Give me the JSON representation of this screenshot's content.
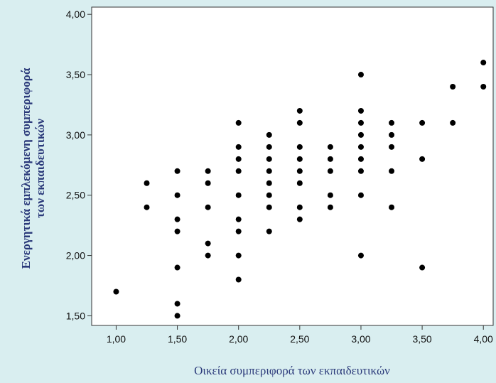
{
  "chart_data": {
    "type": "scatter",
    "title": "",
    "xlabel": "Οικεία συμπεριφορά των εκπαιδευτικών",
    "ylabel_line1": "Ενεργητικά εμπλεκόμενη συμπεριφορά",
    "ylabel_line2": "των εκπαιδευτικών",
    "xlim": [
      0.8,
      4.08
    ],
    "ylim": [
      1.42,
      4.06
    ],
    "x_ticks": [
      1.0,
      1.5,
      2.0,
      2.5,
      3.0,
      3.5,
      4.0
    ],
    "x_tick_labels": [
      "1,00",
      "1,50",
      "2,00",
      "2,50",
      "3,00",
      "3,50",
      "4,00"
    ],
    "y_ticks": [
      1.5,
      2.0,
      2.5,
      3.0,
      3.5,
      4.0
    ],
    "y_tick_labels": [
      "1,50",
      "2,00",
      "2,50",
      "3,00",
      "3,50",
      "4,00"
    ],
    "grid": false,
    "plot_background": "#ffffff",
    "frame_background": "#d9eef0",
    "point_color": "#000000",
    "points": [
      [
        1.0,
        1.7
      ],
      [
        1.25,
        2.6
      ],
      [
        1.25,
        2.4
      ],
      [
        1.5,
        2.7
      ],
      [
        1.5,
        2.5
      ],
      [
        1.5,
        2.3
      ],
      [
        1.5,
        2.2
      ],
      [
        1.5,
        1.9
      ],
      [
        1.5,
        1.6
      ],
      [
        1.5,
        1.5
      ],
      [
        1.75,
        2.7
      ],
      [
        1.75,
        2.6
      ],
      [
        1.75,
        2.4
      ],
      [
        1.75,
        2.1
      ],
      [
        1.75,
        2.0
      ],
      [
        2.0,
        3.1
      ],
      [
        2.0,
        2.9
      ],
      [
        2.0,
        2.8
      ],
      [
        2.0,
        2.7
      ],
      [
        2.0,
        2.5
      ],
      [
        2.0,
        2.3
      ],
      [
        2.0,
        2.2
      ],
      [
        2.0,
        2.0
      ],
      [
        2.0,
        1.8
      ],
      [
        2.25,
        3.0
      ],
      [
        2.25,
        2.9
      ],
      [
        2.25,
        2.8
      ],
      [
        2.25,
        2.7
      ],
      [
        2.25,
        2.6
      ],
      [
        2.25,
        2.5
      ],
      [
        2.25,
        2.4
      ],
      [
        2.25,
        2.2
      ],
      [
        2.5,
        3.2
      ],
      [
        2.5,
        3.1
      ],
      [
        2.5,
        2.9
      ],
      [
        2.5,
        2.8
      ],
      [
        2.5,
        2.7
      ],
      [
        2.5,
        2.6
      ],
      [
        2.5,
        2.4
      ],
      [
        2.5,
        2.3
      ],
      [
        2.75,
        2.9
      ],
      [
        2.75,
        2.8
      ],
      [
        2.75,
        2.7
      ],
      [
        2.75,
        2.5
      ],
      [
        2.75,
        2.4
      ],
      [
        3.0,
        3.5
      ],
      [
        3.0,
        3.2
      ],
      [
        3.0,
        3.1
      ],
      [
        3.0,
        3.0
      ],
      [
        3.0,
        2.9
      ],
      [
        3.0,
        2.8
      ],
      [
        3.0,
        2.7
      ],
      [
        3.0,
        2.5
      ],
      [
        3.0,
        2.0
      ],
      [
        3.25,
        3.1
      ],
      [
        3.25,
        3.0
      ],
      [
        3.25,
        2.9
      ],
      [
        3.25,
        2.7
      ],
      [
        3.25,
        2.4
      ],
      [
        3.5,
        3.1
      ],
      [
        3.5,
        2.8
      ],
      [
        3.5,
        1.9
      ],
      [
        3.75,
        3.4
      ],
      [
        3.75,
        3.1
      ],
      [
        4.0,
        3.6
      ],
      [
        4.0,
        3.4
      ]
    ]
  }
}
